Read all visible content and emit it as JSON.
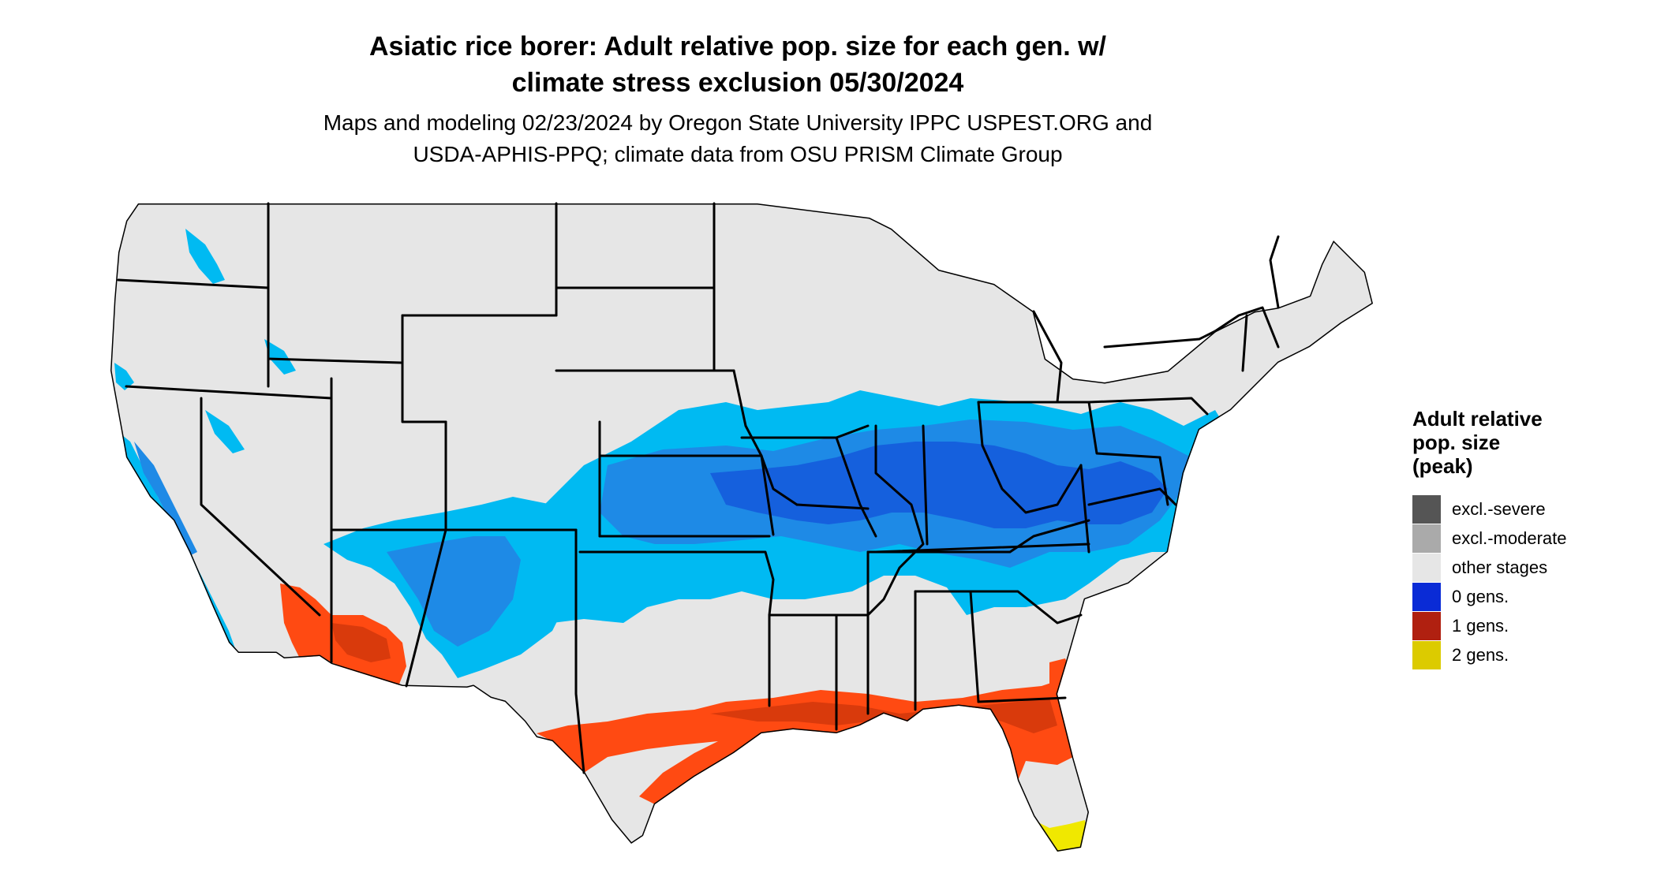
{
  "title": {
    "line1": "Asiatic rice borer: Adult relative pop. size for each gen. w/",
    "line2": "climate stress exclusion 05/30/2024"
  },
  "subtitle": {
    "line1": "Maps and modeling 02/23/2024 by Oregon State University IPPC USPEST.ORG and",
    "line2": "USDA-APHIS-PPQ; climate data from OSU PRISM Climate Group"
  },
  "legend": {
    "title": [
      "Adult relative",
      "pop. size",
      "(peak)"
    ],
    "items": [
      {
        "label": "excl.-severe",
        "color": "#555555"
      },
      {
        "label": "excl.-moderate",
        "color": "#aaaaaa"
      },
      {
        "label": "other stages",
        "color": "#e6e6e6"
      },
      {
        "label": "0 gens.",
        "color": "#0a2bd6"
      },
      {
        "label": "1 gens.",
        "color": "#b02010"
      },
      {
        "label": "2 gens.",
        "color": "#dccb00"
      }
    ]
  },
  "map_colors": {
    "land": "#e6e6e6",
    "blue_light": "#00baf2",
    "blue_mid": "#1e8ae6",
    "blue_dark": "#1560dd",
    "orange": "#ff4a12",
    "orange_dark": "#d93a0c",
    "yellow": "#f0e800",
    "border": "#000000"
  }
}
